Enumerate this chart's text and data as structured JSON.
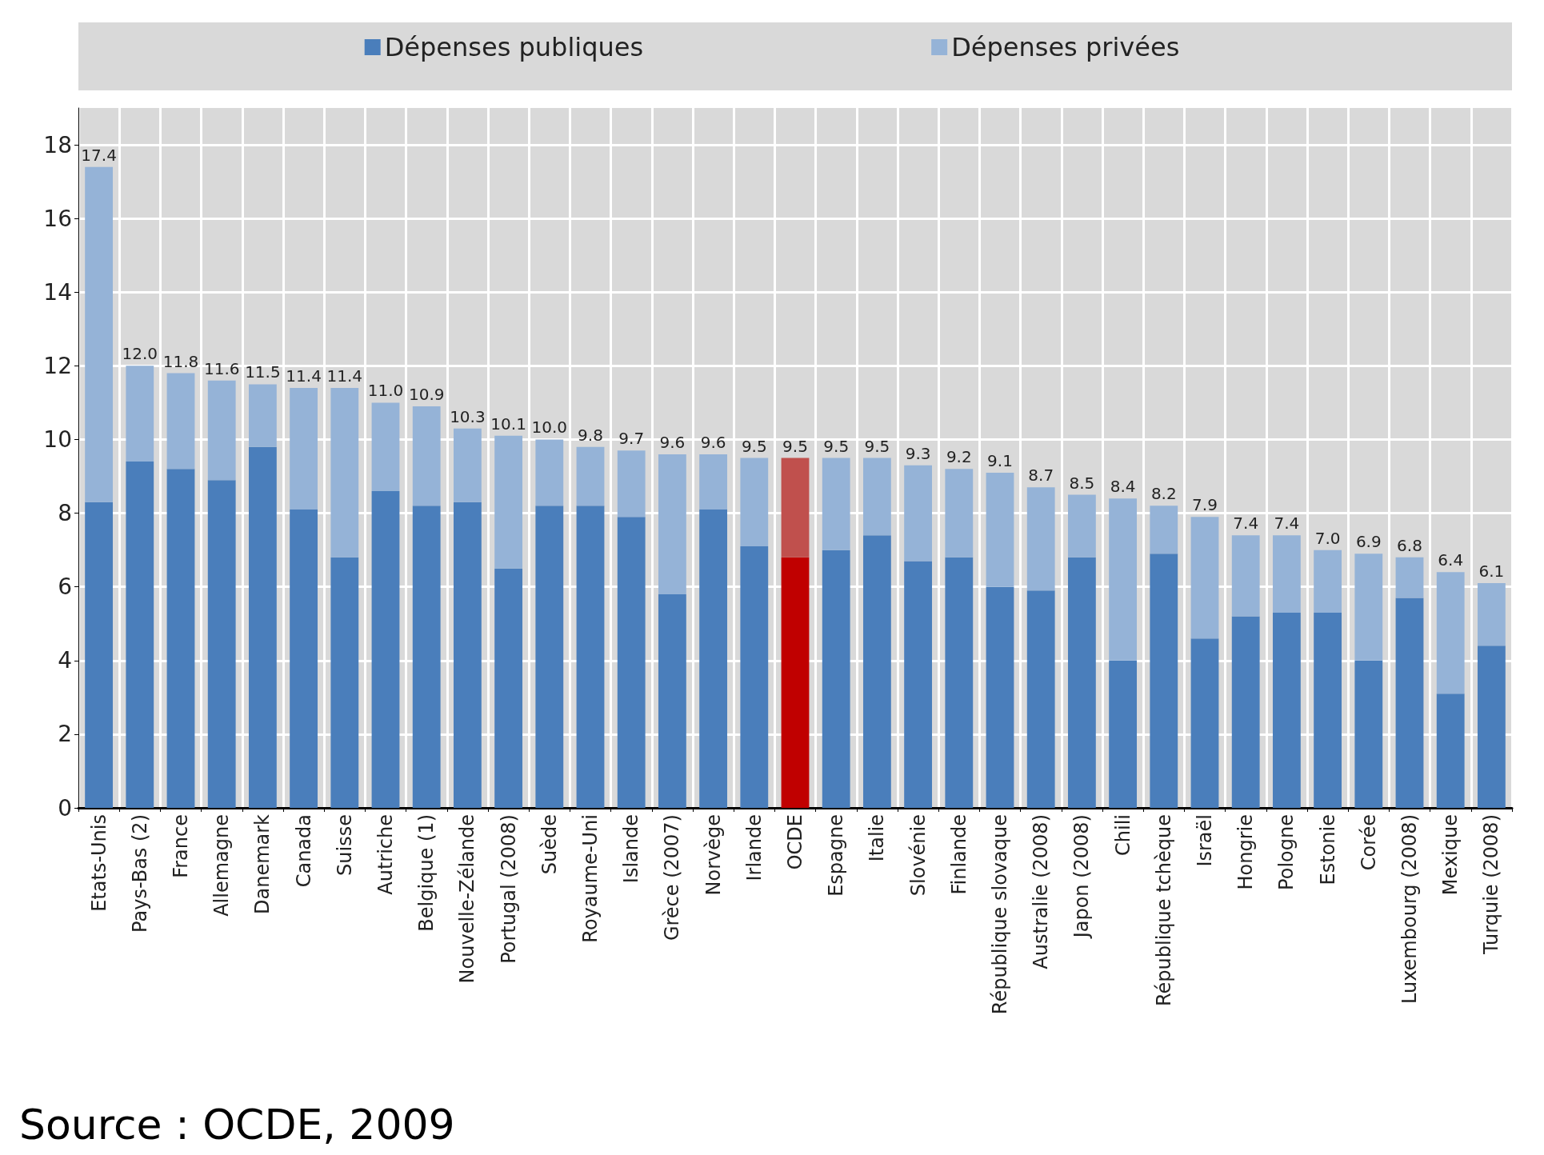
{
  "chart_data": {
    "type": "bar",
    "stacked": true,
    "categories": [
      "Etats-Unis",
      "Pays-Bas (2)",
      "France",
      "Allemagne",
      "Danemark",
      "Canada",
      "Suisse",
      "Autriche",
      "Belgique (1)",
      "Nouvelle-Zélande",
      "Portugal (2008)",
      "Suède",
      "Royaume-Uni",
      "Islande",
      "Grèce (2007)",
      "Norvège",
      "Irlande",
      "OCDE",
      "Espagne",
      "Italie",
      "Slovénie",
      "Finlande",
      "République slovaque",
      "Australie (2008)",
      "Japon (2008)",
      "Chili",
      "République tchèque",
      "Israël",
      "Hongrie",
      "Pologne",
      "Estonie",
      "Corée",
      "Luxembourg (2008)",
      "Mexique",
      "Turquie (2008)"
    ],
    "series": [
      {
        "name": "Dépenses publiques",
        "color": "#4a7ebb",
        "colors": [
          "#4a7ebb",
          "#4a7ebb",
          "#4a7ebb",
          "#4a7ebb",
          "#4a7ebb",
          "#4a7ebb",
          "#4a7ebb",
          "#4a7ebb",
          "#4a7ebb",
          "#4a7ebb",
          "#4a7ebb",
          "#4a7ebb",
          "#4a7ebb",
          "#4a7ebb",
          "#4a7ebb",
          "#4a7ebb",
          "#4a7ebb",
          "#c00000",
          "#4a7ebb",
          "#4a7ebb",
          "#4a7ebb",
          "#4a7ebb",
          "#4a7ebb",
          "#4a7ebb",
          "#4a7ebb",
          "#4a7ebb",
          "#4a7ebb",
          "#4a7ebb",
          "#4a7ebb",
          "#4a7ebb",
          "#4a7ebb",
          "#4a7ebb",
          "#4a7ebb",
          "#4a7ebb",
          "#4a7ebb"
        ],
        "values": [
          8.3,
          9.4,
          9.2,
          8.9,
          9.8,
          8.1,
          6.8,
          8.6,
          8.2,
          8.3,
          6.5,
          8.2,
          8.2,
          7.9,
          5.8,
          8.1,
          7.1,
          6.8,
          7.0,
          7.4,
          6.7,
          6.8,
          6.0,
          5.9,
          6.8,
          4.0,
          6.9,
          4.6,
          5.2,
          5.3,
          5.3,
          4.0,
          5.7,
          3.1,
          4.4
        ]
      },
      {
        "name": "Dépenses privées",
        "color": "#95b3d7",
        "colors": [
          "#95b3d7",
          "#95b3d7",
          "#95b3d7",
          "#95b3d7",
          "#95b3d7",
          "#95b3d7",
          "#95b3d7",
          "#95b3d7",
          "#95b3d7",
          "#95b3d7",
          "#95b3d7",
          "#95b3d7",
          "#95b3d7",
          "#95b3d7",
          "#95b3d7",
          "#95b3d7",
          "#95b3d7",
          "#c0504d",
          "#95b3d7",
          "#95b3d7",
          "#95b3d7",
          "#95b3d7",
          "#95b3d7",
          "#95b3d7",
          "#95b3d7",
          "#95b3d7",
          "#95b3d7",
          "#95b3d7",
          "#95b3d7",
          "#95b3d7",
          "#95b3d7",
          "#95b3d7",
          "#95b3d7",
          "#95b3d7",
          "#95b3d7"
        ],
        "values": [
          9.1,
          2.6,
          2.6,
          2.7,
          1.7,
          3.3,
          4.6,
          2.4,
          2.7,
          2.0,
          3.6,
          1.8,
          1.6,
          1.8,
          3.8,
          1.5,
          2.4,
          2.7,
          2.5,
          2.1,
          2.6,
          2.4,
          3.1,
          2.8,
          1.7,
          4.4,
          1.3,
          3.3,
          2.2,
          2.1,
          1.7,
          2.9,
          1.1,
          3.3,
          1.7
        ]
      }
    ],
    "totals": [
      "17.4",
      "12.0",
      "11.8",
      "11.6",
      "11.5",
      "11.4",
      "11.4",
      "11.0",
      "10.9",
      "10.3",
      "10.1",
      "10.0",
      "9.8",
      "9.7",
      "9.6",
      "9.6",
      "9.5",
      "9.5",
      "9.5",
      "9.5",
      "9.3",
      "9.2",
      "9.1",
      "8.7",
      "8.5",
      "8.4",
      "8.2",
      "7.9",
      "7.4",
      "7.4",
      "7.0",
      "6.9",
      "6.8",
      "6.4",
      "6.1"
    ],
    "ylim": [
      0,
      19
    ],
    "yticks": [
      0,
      2,
      4,
      6,
      8,
      10,
      12,
      14,
      16,
      18
    ],
    "grid": true,
    "legend": "top",
    "annotations": [
      "Source : OCDE, 2009"
    ]
  }
}
